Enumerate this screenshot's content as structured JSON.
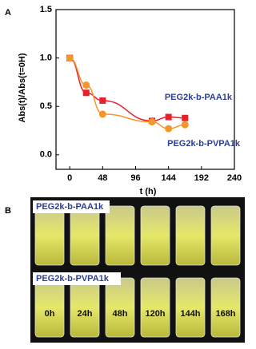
{
  "chart_data": {
    "type": "scatter",
    "panel_label": "A",
    "xlabel": "t (h)",
    "ylabel": "Abs(t)/Abs(t=0H)",
    "xlim": [
      -20,
      240
    ],
    "xticks": [
      0,
      48,
      96,
      144,
      192,
      240
    ],
    "ylim": [
      -0.15,
      1.5
    ],
    "yticks": [
      {
        "value": 0,
        "label": "0.0"
      },
      {
        "value": 0.5,
        "label": "0.5"
      },
      {
        "value": 1,
        "label": "1.0"
      },
      {
        "value": 1.5,
        "label": "1.5"
      }
    ],
    "series": [
      {
        "name": "PEG2k-b-PAA1k",
        "color": "#e8202a",
        "marker": "square",
        "x": [
          0,
          24,
          48,
          120,
          144,
          168
        ],
        "values": [
          1.0,
          0.64,
          0.56,
          0.35,
          0.39,
          0.38
        ]
      },
      {
        "name": "PEG2k-b-PVPA1k",
        "color": "#f5962a",
        "marker": "circle",
        "x": [
          0,
          24,
          48,
          120,
          144,
          168
        ],
        "values": [
          1.0,
          0.72,
          0.42,
          0.34,
          0.27,
          0.31
        ]
      }
    ]
  },
  "photo": {
    "panel_label": "B",
    "row_labels": [
      "PEG2k-b-PAA1k",
      "PEG2k-b-PVPA1k"
    ],
    "times": [
      "0h",
      "24h",
      "48h",
      "120h",
      "144h",
      "168h"
    ]
  }
}
